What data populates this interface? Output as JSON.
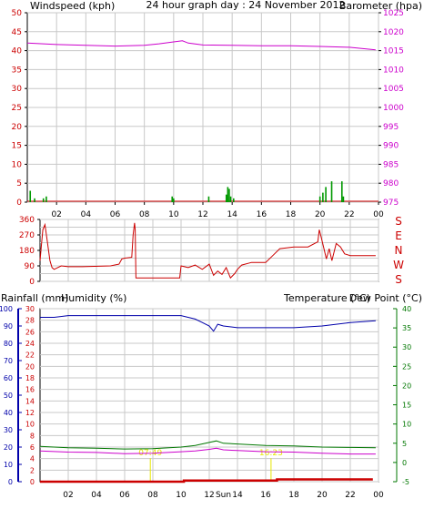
{
  "colors": {
    "red": "#cc0000",
    "magenta": "#cc00cc",
    "navy": "#0000aa",
    "blue": "#0000ff",
    "green": "#007700",
    "barGreen": "#009900",
    "gray": "#c8c8c8",
    "yellow": "#e6e600"
  },
  "header": {
    "left": "Windspeed (kph)",
    "center": "24 hour graph day : 24 November 2012",
    "right": "Barometer (hpa)"
  },
  "xticks": [
    "02",
    "04",
    "06",
    "08",
    "10",
    "12",
    "14",
    "16",
    "18",
    "20",
    "22",
    "00"
  ],
  "bottom_xticks": [
    "02",
    "04",
    "06",
    "08",
    "10",
    "12",
    "Sun",
    "14",
    "16",
    "18",
    "20",
    "22",
    "00"
  ],
  "compass": [
    "S",
    "E",
    "N",
    "W",
    "S"
  ],
  "bottom_header": {
    "rain": "Rainfall (mm)",
    "hum": "Humidity (%)",
    "temp": "Temperature (°C)",
    "dew": "Dew Point (°C)"
  },
  "annotations": {
    "rise": "07:49",
    "set": "16:23"
  },
  "chart_data": [
    {
      "type": "bar",
      "series_name": "Windspeed (kph)",
      "ylim": [
        0,
        50
      ],
      "yticks": [
        0,
        5,
        10,
        15,
        20,
        25,
        30,
        35,
        40,
        45,
        50
      ],
      "x_hours": [
        0.2,
        0.5,
        1.1,
        1.3,
        9.9,
        10.0,
        12.4,
        13.6,
        13.7,
        13.8,
        13.9,
        14.1,
        20.0,
        20.2,
        20.4,
        20.8,
        21.5,
        21.6
      ],
      "values": [
        3,
        1,
        1,
        1.5,
        1.5,
        1,
        1.5,
        2,
        4,
        3.5,
        1.5,
        1,
        1.5,
        2.5,
        4,
        5.5,
        5.5,
        1.5
      ],
      "overlay_line": {
        "series_name": "Barometer (hpa)",
        "ylim": [
          975,
          1025
        ],
        "yticks": [
          975,
          980,
          985,
          990,
          995,
          1000,
          1005,
          1010,
          1015,
          1020,
          1025
        ],
        "x_hours": [
          0,
          2,
          4,
          6,
          8,
          9,
          10,
          10.6,
          11,
          12,
          14,
          16,
          18,
          20,
          22,
          23.8
        ],
        "values": [
          1017.0,
          1016.6,
          1016.4,
          1016.2,
          1016.4,
          1016.8,
          1017.3,
          1017.6,
          1017.0,
          1016.5,
          1016.4,
          1016.3,
          1016.3,
          1016.1,
          1015.9,
          1015.2
        ]
      }
    },
    {
      "type": "line",
      "series_name": "Wind direction",
      "ylim": [
        0,
        360
      ],
      "yticks": [
        0,
        90,
        180,
        270,
        360
      ],
      "x_hours": [
        0,
        0.1,
        0.2,
        0.35,
        0.5,
        0.7,
        0.85,
        1.0,
        1.5,
        2.0,
        3.0,
        5.0,
        5.6,
        5.8,
        6.0,
        6.5,
        6.6,
        6.7,
        6.75,
        6.8,
        8.0,
        9.9,
        10.0,
        10.5,
        11.0,
        11.5,
        12.0,
        12.3,
        12.6,
        12.9,
        13.2,
        13.5,
        13.8,
        14.0,
        14.3,
        15.0,
        16.0,
        16.5,
        17.0,
        18.0,
        19.0,
        19.7,
        19.8,
        19.9,
        20.1,
        20.3,
        20.5,
        20.7,
        21.0,
        21.3,
        21.6,
        22.0,
        23.0,
        23.8
      ],
      "values": [
        120,
        210,
        300,
        330,
        240,
        120,
        80,
        70,
        90,
        85,
        85,
        90,
        100,
        130,
        135,
        140,
        270,
        340,
        300,
        20,
        20,
        20,
        90,
        80,
        95,
        70,
        100,
        35,
        60,
        40,
        80,
        20,
        45,
        70,
        95,
        110,
        110,
        150,
        190,
        200,
        200,
        230,
        300,
        270,
        200,
        130,
        190,
        120,
        220,
        200,
        160,
        150,
        150,
        150
      ]
    },
    {
      "type": "line",
      "title_left": "Rainfall (mm)",
      "series": [
        {
          "name": "Rainfall (mm)",
          "axis": "rain",
          "ylim": [
            0,
            30
          ],
          "yticks": [
            0,
            2,
            4,
            6,
            8,
            10,
            12,
            14,
            16,
            18,
            20,
            22,
            24,
            26,
            28,
            30
          ],
          "x_hours": [
            0,
            10.2,
            10.2,
            16.8,
            16.8,
            23.6
          ],
          "values": [
            0,
            0,
            0.2,
            0.2,
            0.4,
            0.4
          ]
        },
        {
          "name": "Humidity (%)",
          "axis": "humidity",
          "ylim": [
            0,
            100
          ],
          "yticks": [
            0,
            10,
            20,
            30,
            40,
            50,
            60,
            70,
            80,
            90,
            100
          ],
          "x_hours": [
            0,
            1,
            2,
            4,
            6,
            8,
            10,
            11,
            11.5,
            12,
            12.3,
            12.6,
            13,
            14,
            16,
            18,
            20,
            22,
            23.8
          ],
          "values": [
            95,
            95,
            96,
            96,
            96,
            96,
            96,
            94,
            92,
            90,
            87,
            91,
            90,
            89,
            89,
            89,
            90,
            92,
            93
          ]
        },
        {
          "name": "Temperature (°C)",
          "axis": "temp",
          "ylim": [
            -5,
            40
          ],
          "yticks": [
            -5,
            0,
            5,
            10,
            15,
            20,
            25,
            30,
            35,
            40
          ],
          "x_hours": [
            0,
            2,
            4,
            6,
            8,
            10,
            11,
            12,
            12.5,
            13,
            14,
            16,
            18,
            20,
            22,
            23.8
          ],
          "values": [
            4.2,
            3.8,
            3.7,
            3.5,
            3.6,
            4.0,
            4.4,
            5.2,
            5.6,
            5.0,
            4.8,
            4.4,
            4.3,
            4.0,
            3.9,
            3.8
          ]
        },
        {
          "name": "Dew Point (°C)",
          "axis": "temp",
          "ylim": [
            -5,
            40
          ],
          "yticks": [
            -5,
            0,
            5,
            10,
            15,
            20,
            25,
            30,
            35,
            40
          ],
          "x_hours": [
            0,
            2,
            4,
            6,
            8,
            10,
            11,
            12,
            12.5,
            13,
            14,
            16,
            18,
            20,
            22,
            23.8
          ],
          "values": [
            3.0,
            2.7,
            2.6,
            2.3,
            2.4,
            2.8,
            3.0,
            3.4,
            3.7,
            3.3,
            3.1,
            2.8,
            2.7,
            2.4,
            2.2,
            2.2
          ]
        }
      ],
      "sun_markers": [
        7.82,
        16.38
      ]
    }
  ]
}
